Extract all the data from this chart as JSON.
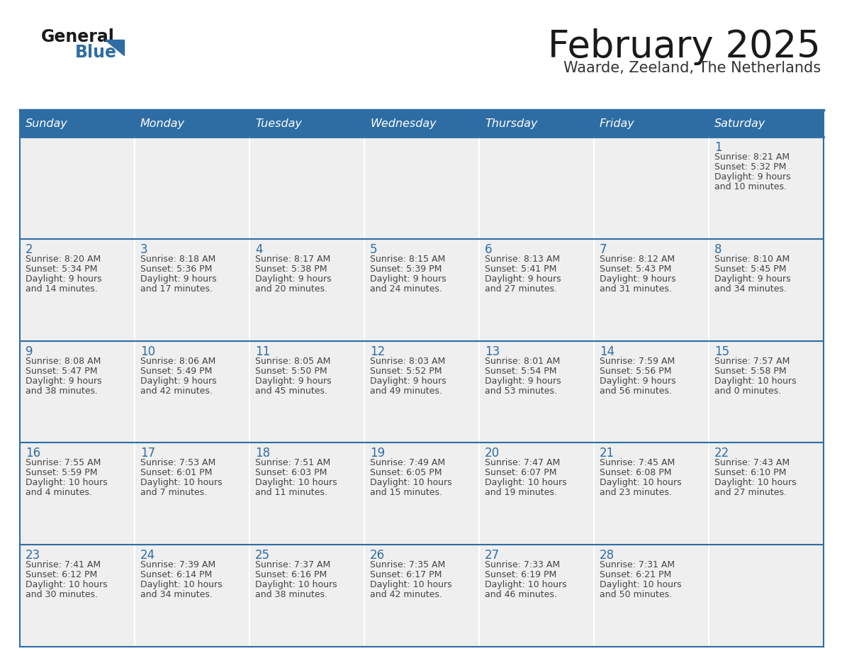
{
  "title": "February 2025",
  "subtitle": "Waarde, Zeeland, The Netherlands",
  "days_of_week": [
    "Sunday",
    "Monday",
    "Tuesday",
    "Wednesday",
    "Thursday",
    "Friday",
    "Saturday"
  ],
  "header_bg": "#2E6DA4",
  "header_text": "#FFFFFF",
  "cell_bg_light": "#EFEFEF",
  "cell_bg_white": "#FFFFFF",
  "row_divider_color": "#2E6DA4",
  "col_divider_color": "#FFFFFF",
  "title_color": "#1a1a1a",
  "subtitle_color": "#333333",
  "day_num_color": "#2E6DA4",
  "cell_text_color": "#444444",
  "logo_general_color": "#1a1a1a",
  "logo_blue_color": "#2E6DA4",
  "calendar_data": [
    [
      {
        "day": null,
        "info": null
      },
      {
        "day": null,
        "info": null
      },
      {
        "day": null,
        "info": null
      },
      {
        "day": null,
        "info": null
      },
      {
        "day": null,
        "info": null
      },
      {
        "day": null,
        "info": null
      },
      {
        "day": 1,
        "info": "Sunrise: 8:21 AM\nSunset: 5:32 PM\nDaylight: 9 hours\nand 10 minutes."
      }
    ],
    [
      {
        "day": 2,
        "info": "Sunrise: 8:20 AM\nSunset: 5:34 PM\nDaylight: 9 hours\nand 14 minutes."
      },
      {
        "day": 3,
        "info": "Sunrise: 8:18 AM\nSunset: 5:36 PM\nDaylight: 9 hours\nand 17 minutes."
      },
      {
        "day": 4,
        "info": "Sunrise: 8:17 AM\nSunset: 5:38 PM\nDaylight: 9 hours\nand 20 minutes."
      },
      {
        "day": 5,
        "info": "Sunrise: 8:15 AM\nSunset: 5:39 PM\nDaylight: 9 hours\nand 24 minutes."
      },
      {
        "day": 6,
        "info": "Sunrise: 8:13 AM\nSunset: 5:41 PM\nDaylight: 9 hours\nand 27 minutes."
      },
      {
        "day": 7,
        "info": "Sunrise: 8:12 AM\nSunset: 5:43 PM\nDaylight: 9 hours\nand 31 minutes."
      },
      {
        "day": 8,
        "info": "Sunrise: 8:10 AM\nSunset: 5:45 PM\nDaylight: 9 hours\nand 34 minutes."
      }
    ],
    [
      {
        "day": 9,
        "info": "Sunrise: 8:08 AM\nSunset: 5:47 PM\nDaylight: 9 hours\nand 38 minutes."
      },
      {
        "day": 10,
        "info": "Sunrise: 8:06 AM\nSunset: 5:49 PM\nDaylight: 9 hours\nand 42 minutes."
      },
      {
        "day": 11,
        "info": "Sunrise: 8:05 AM\nSunset: 5:50 PM\nDaylight: 9 hours\nand 45 minutes."
      },
      {
        "day": 12,
        "info": "Sunrise: 8:03 AM\nSunset: 5:52 PM\nDaylight: 9 hours\nand 49 minutes."
      },
      {
        "day": 13,
        "info": "Sunrise: 8:01 AM\nSunset: 5:54 PM\nDaylight: 9 hours\nand 53 minutes."
      },
      {
        "day": 14,
        "info": "Sunrise: 7:59 AM\nSunset: 5:56 PM\nDaylight: 9 hours\nand 56 minutes."
      },
      {
        "day": 15,
        "info": "Sunrise: 7:57 AM\nSunset: 5:58 PM\nDaylight: 10 hours\nand 0 minutes."
      }
    ],
    [
      {
        "day": 16,
        "info": "Sunrise: 7:55 AM\nSunset: 5:59 PM\nDaylight: 10 hours\nand 4 minutes."
      },
      {
        "day": 17,
        "info": "Sunrise: 7:53 AM\nSunset: 6:01 PM\nDaylight: 10 hours\nand 7 minutes."
      },
      {
        "day": 18,
        "info": "Sunrise: 7:51 AM\nSunset: 6:03 PM\nDaylight: 10 hours\nand 11 minutes."
      },
      {
        "day": 19,
        "info": "Sunrise: 7:49 AM\nSunset: 6:05 PM\nDaylight: 10 hours\nand 15 minutes."
      },
      {
        "day": 20,
        "info": "Sunrise: 7:47 AM\nSunset: 6:07 PM\nDaylight: 10 hours\nand 19 minutes."
      },
      {
        "day": 21,
        "info": "Sunrise: 7:45 AM\nSunset: 6:08 PM\nDaylight: 10 hours\nand 23 minutes."
      },
      {
        "day": 22,
        "info": "Sunrise: 7:43 AM\nSunset: 6:10 PM\nDaylight: 10 hours\nand 27 minutes."
      }
    ],
    [
      {
        "day": 23,
        "info": "Sunrise: 7:41 AM\nSunset: 6:12 PM\nDaylight: 10 hours\nand 30 minutes."
      },
      {
        "day": 24,
        "info": "Sunrise: 7:39 AM\nSunset: 6:14 PM\nDaylight: 10 hours\nand 34 minutes."
      },
      {
        "day": 25,
        "info": "Sunrise: 7:37 AM\nSunset: 6:16 PM\nDaylight: 10 hours\nand 38 minutes."
      },
      {
        "day": 26,
        "info": "Sunrise: 7:35 AM\nSunset: 6:17 PM\nDaylight: 10 hours\nand 42 minutes."
      },
      {
        "day": 27,
        "info": "Sunrise: 7:33 AM\nSunset: 6:19 PM\nDaylight: 10 hours\nand 46 minutes."
      },
      {
        "day": 28,
        "info": "Sunrise: 7:31 AM\nSunset: 6:21 PM\nDaylight: 10 hours\nand 50 minutes."
      },
      {
        "day": null,
        "info": null
      }
    ]
  ]
}
